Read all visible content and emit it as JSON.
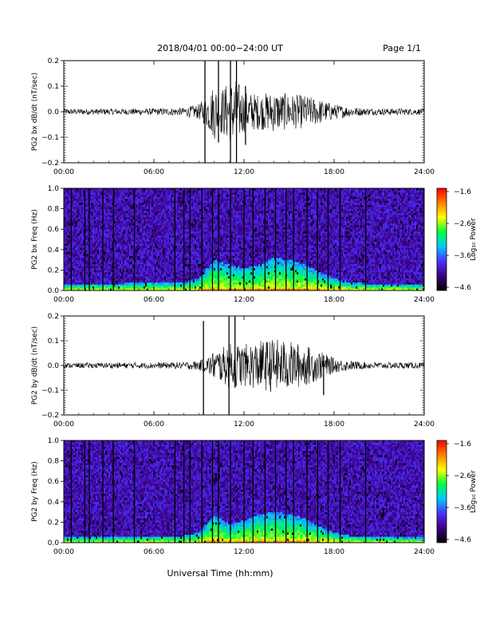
{
  "header": {
    "title": "2018/04/01   00:00−24:00 UT",
    "page": "Page 1/1"
  },
  "x_axis_label": "Universal Time (hh:mm)",
  "chart_data": [
    {
      "type": "line",
      "ylabel": "PG2 bx dB/dt (nT/sec)",
      "ylim": [
        -0.2,
        0.2
      ],
      "yticks": [
        "0.2",
        "0.1",
        "0.0",
        "−0.1",
        "−0.2"
      ],
      "xticks": [
        "00:00",
        "06:00",
        "12:00",
        "18:00",
        "24:00"
      ],
      "xlim_hours": [
        0,
        24
      ],
      "envelope": {
        "x_hours": [
          0,
          4,
          6,
          8,
          9,
          9.5,
          10,
          10.5,
          11,
          11.5,
          12,
          13,
          14,
          15,
          16,
          17,
          18,
          19,
          20,
          24
        ],
        "amplitude": [
          0.012,
          0.012,
          0.013,
          0.016,
          0.03,
          0.06,
          0.11,
          0.09,
          0.12,
          0.13,
          0.08,
          0.07,
          0.08,
          0.07,
          0.065,
          0.05,
          0.03,
          0.02,
          0.014,
          0.012
        ]
      },
      "spikes": [
        {
          "x_hours": 9.4,
          "min": -0.2,
          "max": 0.2
        },
        {
          "x_hours": 10.3,
          "min": -0.12,
          "max": 0.2
        },
        {
          "x_hours": 11.1,
          "min": -0.2,
          "max": 0.2
        },
        {
          "x_hours": 11.5,
          "min": -0.2,
          "max": 0.2
        },
        {
          "x_hours": 12.1,
          "min": -0.13,
          "max": 0.1
        }
      ]
    },
    {
      "type": "heatmap",
      "ylabel": "PG2 bx Freq (Hz)",
      "ylim": [
        0,
        1.0
      ],
      "yticks": [
        "1.0",
        "0.8",
        "0.6",
        "0.4",
        "0.2",
        "0.0"
      ],
      "xticks": [
        "00:00",
        "06:00",
        "12:00",
        "18:00",
        "24:00"
      ],
      "xlim_hours": [
        0,
        24
      ],
      "colorbar": {
        "label": "Log₁₀ Power",
        "range": [
          -4.6,
          -1.6
        ],
        "ticks": [
          "−1.6",
          "−2.6",
          "−3.6",
          "−4.6"
        ],
        "colors": [
          "#000000",
          "#3c0080",
          "#4a30ff",
          "#00c8ff",
          "#00ff40",
          "#ffff00",
          "#ff8000",
          "#ff0000"
        ]
      },
      "gap_lines_hours": [
        0.5,
        1.4,
        1.7,
        2.6,
        3.3,
        4.7,
        7.4,
        8.0,
        8.4,
        9.2,
        9.9,
        10.3,
        11.1,
        12.0,
        12.6,
        13.4,
        14.1,
        14.8,
        15.3,
        16.2,
        16.9,
        17.6,
        18.4,
        20.1
      ],
      "activity": {
        "x_hours": [
          0,
          4,
          8,
          9,
          10,
          11,
          12,
          13,
          14,
          15,
          16,
          17,
          18,
          19,
          20,
          24
        ],
        "top_hz": [
          0.06,
          0.07,
          0.08,
          0.12,
          0.3,
          0.25,
          0.22,
          0.25,
          0.32,
          0.3,
          0.26,
          0.18,
          0.12,
          0.08,
          0.07,
          0.06
        ]
      }
    },
    {
      "type": "line",
      "ylabel": "PG2 by dB/dt (nT/sec)",
      "ylim": [
        -0.2,
        0.2
      ],
      "yticks": [
        "0.2",
        "0.1",
        "0.0",
        "−0.1",
        "−0.2"
      ],
      "xticks": [
        "00:00",
        "06:00",
        "12:00",
        "18:00",
        "24:00"
      ],
      "xlim_hours": [
        0,
        24
      ],
      "envelope": {
        "x_hours": [
          0,
          4,
          6,
          8,
          9,
          9.5,
          10,
          10.5,
          11,
          12,
          13,
          14,
          15,
          16,
          17,
          18,
          19,
          20,
          24
        ],
        "amplitude": [
          0.01,
          0.012,
          0.012,
          0.014,
          0.02,
          0.03,
          0.06,
          0.07,
          0.09,
          0.085,
          0.1,
          0.11,
          0.1,
          0.085,
          0.06,
          0.03,
          0.02,
          0.014,
          0.012
        ]
      },
      "spikes": [
        {
          "x_hours": 9.3,
          "min": -0.2,
          "max": 0.18
        },
        {
          "x_hours": 11.0,
          "min": -0.2,
          "max": 0.2
        },
        {
          "x_hours": 11.4,
          "min": -0.09,
          "max": 0.2
        },
        {
          "x_hours": 17.3,
          "min": -0.12,
          "max": 0.04
        }
      ]
    },
    {
      "type": "heatmap",
      "ylabel": "PG2 by Freq (Hz)",
      "ylim": [
        0,
        1.0
      ],
      "yticks": [
        "1.0",
        "0.8",
        "0.6",
        "0.4",
        "0.2",
        "0.0"
      ],
      "xticks": [
        "00:00",
        "06:00",
        "12:00",
        "18:00",
        "24:00"
      ],
      "xlim_hours": [
        0,
        24
      ],
      "colorbar": {
        "label": "Log₁₀ Power",
        "range": [
          -4.6,
          -1.6
        ],
        "ticks": [
          "−1.6",
          "−2.6",
          "−3.6",
          "−4.6"
        ],
        "colors": [
          "#000000",
          "#3c0080",
          "#4a30ff",
          "#00c8ff",
          "#00ff40",
          "#ffff00",
          "#ff8000",
          "#ff0000"
        ]
      },
      "gap_lines_hours": [
        0.5,
        1.4,
        1.7,
        2.6,
        3.3,
        4.7,
        7.4,
        8.0,
        8.4,
        9.2,
        9.9,
        10.3,
        11.1,
        12.0,
        12.6,
        13.4,
        14.1,
        14.8,
        15.3,
        16.2,
        16.9,
        17.6,
        18.4,
        20.1
      ],
      "activity": {
        "x_hours": [
          0,
          4,
          8,
          9,
          10,
          11,
          12,
          13,
          14,
          15,
          16,
          17,
          18,
          19,
          20,
          24
        ],
        "top_hz": [
          0.05,
          0.06,
          0.07,
          0.1,
          0.28,
          0.18,
          0.22,
          0.28,
          0.3,
          0.28,
          0.24,
          0.16,
          0.1,
          0.07,
          0.06,
          0.05
        ]
      }
    }
  ]
}
